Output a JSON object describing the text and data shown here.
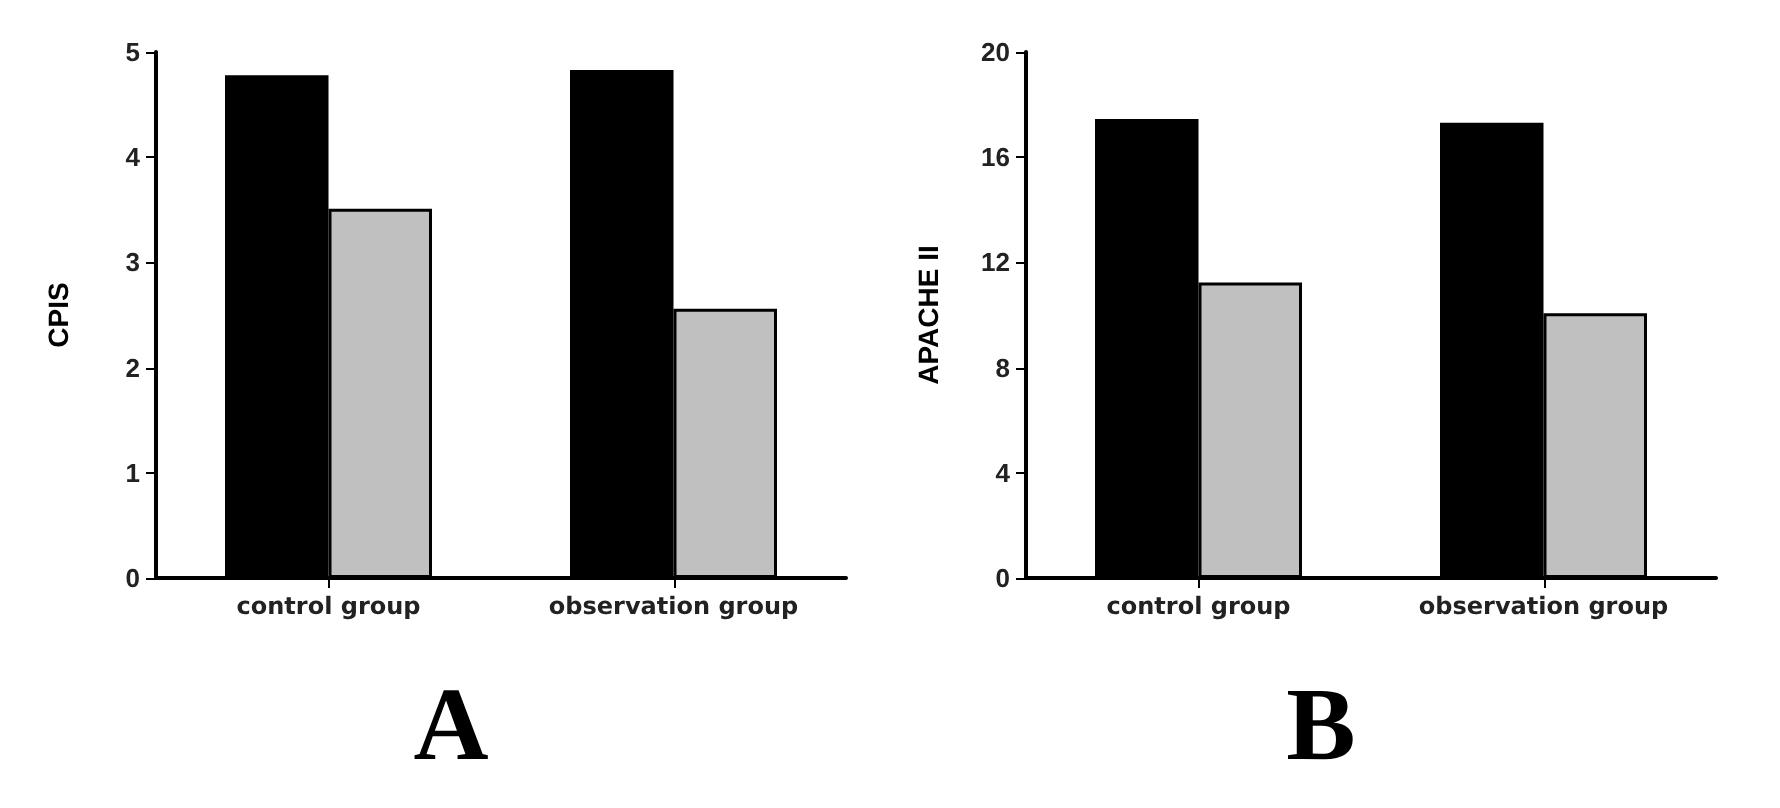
{
  "chart_data": [
    {
      "type": "bar",
      "title": "A",
      "ylabel": "CPIS",
      "categories": [
        "control group",
        "observation group"
      ],
      "series": [
        {
          "color": "#000000",
          "values": [
            4.78,
            4.83
          ]
        },
        {
          "color": "#c0c0c0",
          "values": [
            3.51,
            2.56
          ]
        }
      ],
      "ylim": [
        0,
        5
      ],
      "yticks": [
        0,
        1,
        2,
        3,
        4,
        5
      ],
      "grid": false
    },
    {
      "type": "bar",
      "title": "B",
      "ylabel": "APACHE II",
      "categories": [
        "control group",
        "observation group"
      ],
      "series": [
        {
          "color": "#000000",
          "values": [
            17.45,
            17.31
          ]
        },
        {
          "color": "#c0c0c0",
          "values": [
            11.24,
            10.07
          ]
        }
      ],
      "ylim": [
        0,
        20
      ],
      "yticks": [
        0,
        4,
        8,
        12,
        16,
        20
      ],
      "grid": false
    }
  ]
}
